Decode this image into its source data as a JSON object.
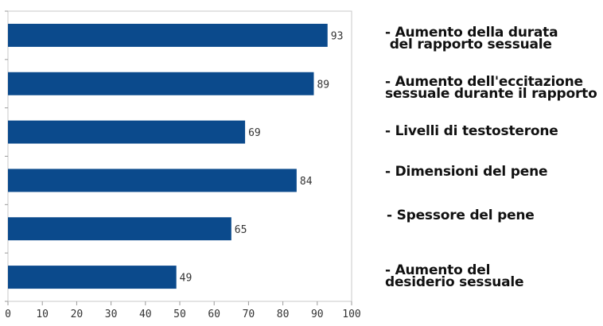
{
  "chart_data": {
    "type": "bar",
    "orientation": "horizontal",
    "categories": [
      "- Aumento della durata del rapporto sessuale",
      "- Aumento dell'eccitazione sessuale durante il rapporto",
      "- Livelli di testosterone",
      "- Dimensioni del pene",
      "- Spessore del pene",
      "- Aumento del desiderio sessuale"
    ],
    "values": [
      93,
      89,
      69,
      84,
      65,
      49
    ],
    "data_labels": [
      "93",
      "89",
      "69",
      "84",
      "65",
      "49"
    ],
    "xlim": [
      0,
      100
    ],
    "x_ticks": [
      "0",
      "10",
      "20",
      "30",
      "40",
      "50",
      "60",
      "70",
      "80",
      "90",
      "100"
    ],
    "bar_color": "#0b4a8c",
    "grid": false,
    "legend": "right"
  },
  "labels": [
    {
      "lines": [
        "- Aumento della durata",
        " del rapporto sessuale"
      ]
    },
    {
      "lines": [
        "- Aumento dell'eccitazione",
        "sessuale durante il rapporto"
      ]
    },
    {
      "lines": [
        "- Livelli di testosterone"
      ]
    },
    {
      "lines": [
        "- Dimensioni del pene"
      ]
    },
    {
      "lines": [
        "- Spessore del pene"
      ]
    },
    {
      "lines": [
        "- Aumento del",
        "desiderio sessuale"
      ]
    }
  ]
}
